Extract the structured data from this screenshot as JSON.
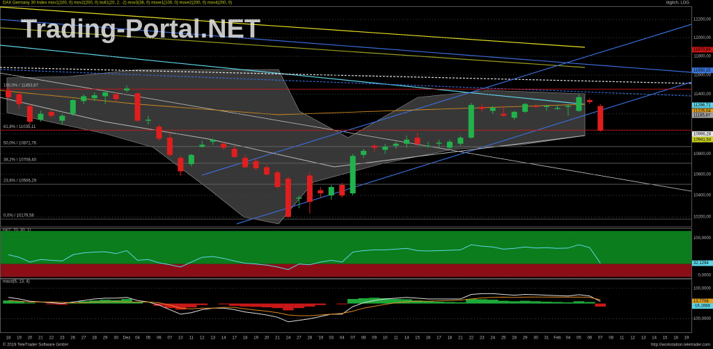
{
  "header": {
    "instrument": "DAX Germany 30 Index mov1(100, 0) mov2(200, 0) boll1(20, 2, -2) mov3(38, 0) move1(100, 0) move2(200, 0) mov4(200, 0)",
    "mode": "täglich, LOG"
  },
  "watermark": "Trading-Portal.NET",
  "footer": {
    "copyright": "© 2019 TeleTrader Software GmbH",
    "url": "http://workstation.teletrader.com"
  },
  "chart_data": [
    {
      "type": "candlestick",
      "log": true,
      "grid": true,
      "up_color": "#22b24c",
      "down_color": "#e01e1e",
      "categories": [
        "18",
        "19",
        "20",
        "21",
        "22",
        "23",
        "26",
        "27",
        "28",
        "29",
        "30",
        "Dez",
        "04",
        "05",
        "06",
        "07",
        "10",
        "11",
        "12",
        "13",
        "14",
        "17",
        "18",
        "19",
        "20",
        "21",
        "24",
        "27",
        "28",
        "'19",
        "03",
        "04",
        "07",
        "08",
        "09",
        "10",
        "11",
        "14",
        "15",
        "16",
        "17",
        "18",
        "21",
        "22",
        "23",
        "24",
        "25",
        "28",
        "29",
        "30",
        "31",
        "Feb",
        "04",
        "05",
        "06",
        "07",
        "08",
        "11",
        "12",
        "13",
        "14",
        "15",
        "18",
        "19"
      ],
      "open": [
        11440,
        11400,
        11280,
        11140,
        11220,
        11130,
        11200,
        11330,
        11360,
        11380,
        11400,
        11440,
        11410,
        11130,
        11070,
        10960,
        10760,
        10700,
        10870,
        10920,
        10900,
        10850,
        10760,
        10730,
        10670,
        10620,
        10560,
        10370,
        10590,
        10450,
        10400,
        10500,
        10420,
        10790,
        10880,
        10840,
        10880,
        10900,
        10960,
        10880,
        10900,
        10860,
        10900,
        10960,
        11270,
        11230,
        11200,
        11160,
        11220,
        11280,
        11270,
        11250,
        11270,
        11230,
        11340,
        11280,
        null,
        null,
        null,
        null,
        null,
        null,
        null,
        null
      ],
      "high": [
        11480,
        11430,
        11300,
        11230,
        11240,
        11200,
        11350,
        11400,
        11420,
        11440,
        11420,
        11490,
        11420,
        11180,
        11090,
        11010,
        10780,
        10800,
        10930,
        10950,
        10920,
        10880,
        10790,
        10760,
        10700,
        10640,
        10580,
        10400,
        10620,
        10480,
        10500,
        10520,
        10800,
        10850,
        10900,
        10900,
        10920,
        10980,
        11010,
        10920,
        10940,
        10940,
        10980,
        11310,
        11300,
        11280,
        11280,
        11230,
        11310,
        11300,
        11290,
        11290,
        11300,
        11400,
        11360,
        11300,
        null,
        null,
        null,
        null,
        null,
        null,
        null,
        null
      ],
      "low": [
        11340,
        11250,
        11090,
        11120,
        11160,
        11090,
        11180,
        11300,
        11330,
        11300,
        11320,
        11420,
        11120,
        11090,
        10930,
        10770,
        10590,
        10680,
        10860,
        10890,
        10840,
        10760,
        10660,
        10640,
        10590,
        10470,
        10190,
        10280,
        10230,
        10380,
        10360,
        10380,
        10400,
        10760,
        10820,
        10800,
        10850,
        10860,
        10880,
        10860,
        10860,
        10840,
        10880,
        10950,
        11220,
        11200,
        11170,
        11140,
        11210,
        11260,
        11230,
        11240,
        11180,
        11220,
        11300,
        11020,
        null,
        null,
        null,
        null,
        null,
        null,
        null,
        null
      ],
      "close": [
        11370,
        11300,
        11120,
        11200,
        11180,
        11180,
        11340,
        11380,
        11390,
        11420,
        11350,
        11460,
        11130,
        11140,
        10950,
        10790,
        10630,
        10790,
        10890,
        10940,
        10860,
        10770,
        10670,
        10660,
        10600,
        10480,
        10200,
        10380,
        10340,
        10420,
        10480,
        10400,
        10780,
        10830,
        10860,
        10870,
        10900,
        10940,
        10900,
        10880,
        10910,
        10920,
        10960,
        11290,
        11250,
        11260,
        11180,
        11220,
        11300,
        11270,
        11280,
        11260,
        11280,
        11370,
        11320,
        11030,
        null,
        null,
        null,
        null,
        null,
        null,
        null,
        null
      ],
      "ylim": [
        10110,
        12340
      ],
      "yticks": [
        {
          "value": 12200,
          "label": "12200,00"
        },
        {
          "value": 12000,
          "label": "12000,00"
        },
        {
          "value": 11800,
          "label": "11800,00"
        },
        {
          "value": 11600,
          "label": "11600,00"
        },
        {
          "value": 11400,
          "label": "11400,00"
        },
        {
          "value": 11200,
          "label": "11200,00"
        },
        {
          "value": 11000,
          "label": "11000,00"
        },
        {
          "value": 10800,
          "label": "10800,00"
        },
        {
          "value": 10600,
          "label": "10600,00"
        },
        {
          "value": 10400,
          "label": "10400,00"
        },
        {
          "value": 10200,
          "label": "10200,00"
        }
      ],
      "fibonacci": [
        {
          "value": 11453.67,
          "label": "100,0% / 11453,67",
          "color": "#d01818"
        },
        {
          "value": 11035.11,
          "label": "61,8% / 11035,11",
          "color": "#d01818"
        },
        {
          "value": 10871.76,
          "label": "50,0% / 10871,76",
          "color": "#666666"
        },
        {
          "value": 10708.4,
          "label": "38,2% / 10708,40",
          "color": "#666666"
        },
        {
          "value": 10506.29,
          "label": "23,6% / 10506,29",
          "color": "#666666"
        },
        {
          "value": 10179.58,
          "label": "0,0% / 10179,58",
          "color": "#666666"
        }
      ],
      "price_tags": [
        {
          "value": 11870.84,
          "label": "11870,84",
          "color": "#c81414"
        },
        {
          "value": 11650.15,
          "label": "11650,15",
          "color": "#3a78e0"
        },
        {
          "value": 11286.71,
          "label": "11286,71",
          "color": "#5fd6ea"
        },
        {
          "value": 11225.04,
          "label": "11225,04",
          "color": "#e0a020"
        },
        {
          "value": 11185.87,
          "label": "11185,87",
          "color": "#a0a0a0"
        },
        {
          "value": 10996.28,
          "label": "10996,28",
          "color": "#e8e8e8"
        },
        {
          "value": 10941.54,
          "label": "10941,54",
          "color": "#c8d020"
        }
      ]
    },
    {
      "type": "line",
      "title": "rsi(7, 70, 30, 1)",
      "color": "#5fd6ea",
      "values": [
        55,
        48,
        35,
        42,
        40,
        38,
        55,
        60,
        62,
        63,
        58,
        66,
        40,
        42,
        33,
        28,
        22,
        35,
        48,
        50,
        45,
        38,
        32,
        30,
        27,
        22,
        15,
        30,
        28,
        35,
        40,
        35,
        62,
        66,
        68,
        68,
        70,
        72,
        66,
        65,
        66,
        67,
        68,
        82,
        78,
        76,
        70,
        72,
        76,
        73,
        74,
        72,
        73,
        82,
        74,
        32.1294,
        null,
        null,
        null,
        null,
        null,
        null,
        null,
        null
      ],
      "ylim": [
        -8,
        125
      ],
      "yticks": [
        {
          "value": 100,
          "label": "100,0000"
        },
        {
          "value": 0,
          "label": "0,0000"
        }
      ],
      "zones": [
        {
          "from": 30,
          "to": 119,
          "color": "#0b7d1c"
        },
        {
          "from": -5,
          "to": 30,
          "color": "#8c0d16"
        }
      ],
      "price_tags": [
        {
          "value": 32.1294,
          "label": "32,1294",
          "color": "#5fd6ea"
        }
      ]
    },
    {
      "type": "macd",
      "title": "macd(6, 13, 4)",
      "up_color": "#1fa83a",
      "down_color": "#c81818",
      "histogram": [
        20,
        15,
        5,
        0,
        -5,
        -8,
        5,
        15,
        20,
        25,
        22,
        30,
        10,
        0,
        -15,
        -30,
        -40,
        -25,
        -10,
        0,
        -5,
        -15,
        -20,
        -22,
        -25,
        -30,
        -45,
        -30,
        -20,
        -10,
        0,
        -5,
        30,
        35,
        38,
        35,
        30,
        28,
        20,
        15,
        12,
        10,
        8,
        30,
        28,
        25,
        18,
        15,
        18,
        15,
        12,
        10,
        8,
        15,
        10,
        -20,
        null,
        null,
        null,
        null,
        null,
        null,
        null,
        null
      ],
      "series": [
        {
          "color": "#e0e0e0",
          "values": [
            40,
            30,
            15,
            10,
            5,
            0,
            10,
            20,
            30,
            35,
            35,
            40,
            20,
            10,
            -10,
            -40,
            -70,
            -60,
            -40,
            -30,
            -30,
            -40,
            -55,
            -65,
            -75,
            -90,
            -120,
            -110,
            -100,
            -85,
            -70,
            -70,
            -20,
            5,
            20,
            30,
            35,
            40,
            35,
            30,
            30,
            30,
            30,
            60,
            65,
            65,
            60,
            55,
            60,
            58,
            55,
            52,
            50,
            58,
            50,
            13.7706,
            null,
            null,
            null,
            null,
            null,
            null,
            null,
            null
          ]
        },
        {
          "color": "#e08a20",
          "values": [
            20,
            15,
            10,
            10,
            10,
            8,
            5,
            5,
            10,
            10,
            13,
            10,
            10,
            10,
            5,
            -10,
            -30,
            -35,
            -30,
            -30,
            -25,
            -25,
            -35,
            -43,
            -50,
            -60,
            -75,
            -80,
            -80,
            -75,
            -70,
            -65,
            -50,
            -30,
            -18,
            -5,
            5,
            12,
            15,
            15,
            18,
            20,
            22,
            30,
            37,
            40,
            42,
            40,
            42,
            43,
            43,
            42,
            42,
            43,
            40,
            25,
            null,
            null,
            null,
            null,
            null,
            null,
            null,
            null
          ]
        }
      ],
      "ylim": [
        -189,
        158
      ],
      "yticks": [
        {
          "value": 100,
          "label": "100,0000"
        },
        {
          "value": -100,
          "label": "-100,0000"
        }
      ],
      "price_tags": [
        {
          "value": 13.7706,
          "label": "13,7706",
          "color": "#e0a020"
        },
        {
          "value": -16.1668,
          "label": "-16,1668",
          "color": "#5fd6ea"
        }
      ]
    }
  ]
}
